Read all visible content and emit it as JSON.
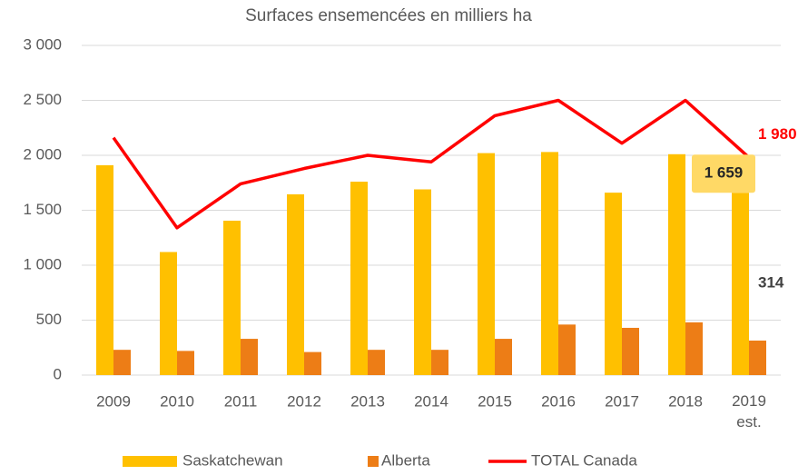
{
  "chart_data": {
    "type": "bar",
    "title": "Surfaces ensemencées en milliers ha",
    "categories": [
      "2009",
      "2010",
      "2011",
      "2012",
      "2013",
      "2014",
      "2015",
      "2016",
      "2017",
      "2018",
      "2019 est."
    ],
    "series": [
      {
        "name": "Saskatchewan",
        "color": "#ffc000",
        "type": "bar",
        "values": [
          1910,
          1120,
          1405,
          1645,
          1760,
          1690,
          2020,
          2030,
          1660,
          2010,
          1659
        ],
        "value_labels": [
          null,
          null,
          null,
          null,
          null,
          null,
          null,
          null,
          null,
          null,
          "1 659"
        ]
      },
      {
        "name": "Alberta",
        "color": "#ed7d16",
        "type": "bar",
        "values": [
          230,
          220,
          330,
          210,
          230,
          230,
          330,
          460,
          430,
          480,
          314
        ],
        "value_labels": [
          null,
          null,
          null,
          null,
          null,
          null,
          null,
          null,
          null,
          null,
          "314"
        ]
      },
      {
        "name": "TOTAL Canada",
        "color": "#ff0000",
        "type": "line",
        "values": [
          2160,
          1340,
          1740,
          1880,
          2000,
          1940,
          2360,
          2500,
          2110,
          2500,
          1980
        ],
        "value_labels": [
          null,
          null,
          null,
          null,
          null,
          null,
          null,
          null,
          null,
          null,
          "1 980"
        ]
      }
    ],
    "ylim": [
      0,
      3000
    ],
    "yticks": [
      0,
      500,
      {
        "value": 1000,
        "label": "1 000"
      },
      {
        "value": 1500,
        "label": "1 500"
      },
      {
        "value": 2000,
        "label": "2 000"
      },
      {
        "value": 2500,
        "label": "2 500"
      },
      {
        "value": 3000,
        "label": "3 000"
      }
    ],
    "grid": true,
    "legend": "bottom"
  }
}
